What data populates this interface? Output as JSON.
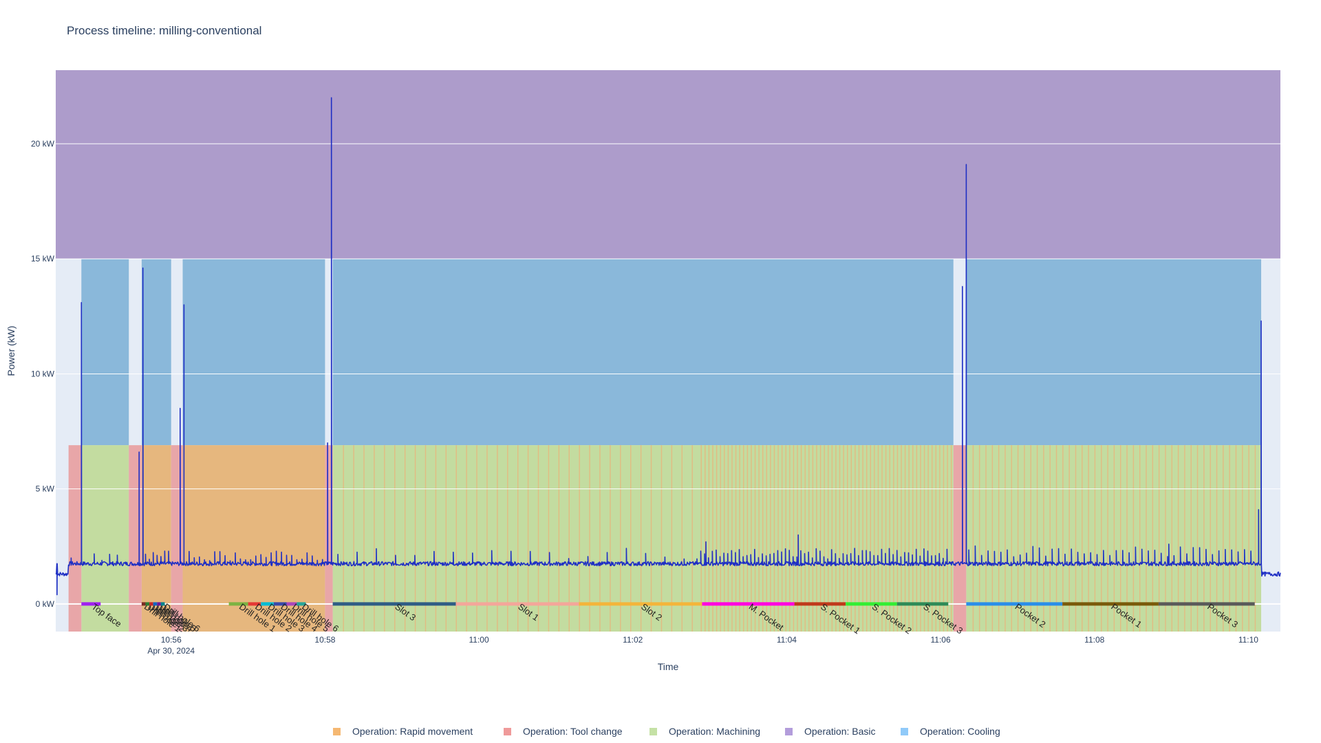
{
  "chart_data": {
    "type": "line",
    "title": "Process timeline: milling-conventional",
    "xlabel": "Time",
    "ylabel": "Power (kW)",
    "x_range": [
      "10:54:30",
      "11:10:25"
    ],
    "y_range": [
      -1.2,
      23.2
    ],
    "x_ticks": [
      {
        "t": "10:56",
        "label": "10:56",
        "sublabel": "Apr 30, 2024"
      },
      {
        "t": "10:58",
        "label": "10:58"
      },
      {
        "t": "11:00",
        "label": "11:00"
      },
      {
        "t": "11:02",
        "label": "11:02"
      },
      {
        "t": "11:04",
        "label": "11:04"
      },
      {
        "t": "11:06",
        "label": "11:06"
      },
      {
        "t": "11:08",
        "label": "11:08"
      },
      {
        "t": "11:10",
        "label": "11:10"
      }
    ],
    "y_ticks": [
      {
        "v": 0,
        "label": "0 kW"
      },
      {
        "v": 5,
        "label": "5 kW"
      },
      {
        "v": 10,
        "label": "10 kW"
      },
      {
        "v": 15,
        "label": "15 kW"
      },
      {
        "v": 20,
        "label": "20 kW"
      }
    ],
    "grid": true,
    "legend_position": "bottom-center",
    "legend": [
      {
        "name": "Operation: Rapid movement",
        "color": "#f5b872"
      },
      {
        "name": "Operation: Tool change",
        "color": "#ef9a9a"
      },
      {
        "name": "Operation: Machining",
        "color": "#c5e1a5"
      },
      {
        "name": "Operation: Basic",
        "color": "#b39ddb"
      },
      {
        "name": "Operation: Cooling",
        "color": "#90caf9"
      }
    ],
    "band_colors": {
      "basic": "#ad9ccb",
      "cooling": "#8ab8da",
      "machining": "#c3dca0",
      "rapid": "#e6b77e",
      "toolchange": "#e8a6a8",
      "plot_bg": "#e5ecf6",
      "line": "#1f2fc4"
    },
    "basic_band": {
      "start": "10:54:30",
      "end": "11:10:25",
      "ymin": 15,
      "ymax": 23.2
    },
    "cooling_bands": [
      {
        "start": "10:54:50",
        "end": "10:55:27"
      },
      {
        "start": "10:55:37",
        "end": "10:56:00"
      },
      {
        "start": "10:56:09",
        "end": "10:58:00"
      },
      {
        "start": "10:58:06",
        "end": "11:06:10"
      },
      {
        "start": "11:06:20",
        "end": "11:10:10"
      }
    ],
    "toolchange_bands": [
      {
        "start": "10:54:40",
        "end": "10:54:50"
      },
      {
        "start": "10:55:27",
        "end": "10:55:37"
      },
      {
        "start": "10:56:00",
        "end": "10:56:09"
      },
      {
        "start": "10:58:00",
        "end": "10:58:06"
      },
      {
        "start": "11:06:10",
        "end": "11:06:20"
      }
    ],
    "rapid_bands": [
      {
        "start": "10:55:37",
        "end": "10:56:00"
      },
      {
        "start": "10:56:09",
        "end": "10:58:00"
      }
    ],
    "machining_bands": [
      {
        "start": "10:54:50",
        "end": "10:55:27"
      },
      {
        "start": "10:58:06",
        "end": "11:06:10"
      },
      {
        "start": "11:06:20",
        "end": "11:10:10"
      }
    ],
    "rapid_stripes": [
      {
        "start": "10:58:06",
        "end": "11:02:50",
        "every_s": 8
      },
      {
        "start": "11:02:50",
        "end": "11:06:10",
        "every_s": 3
      },
      {
        "start": "11:06:20",
        "end": "11:10:10",
        "every_s": 5
      }
    ],
    "band_ymin": -1.2,
    "band_ymax_machining": 6.9,
    "band_ymax_cooling": 15,
    "operations": [
      {
        "label": "Top face",
        "start": "10:54:50",
        "end": "10:55:05",
        "color": "#a020f0"
      },
      {
        "label": "Drill hole 1",
        "start": "10:55:37",
        "end": "10:55:40",
        "color": "#7b2d26"
      },
      {
        "label": "Drill hole 2",
        "start": "10:55:40",
        "end": "10:55:43",
        "color": "#2e7d32"
      },
      {
        "label": "Drill hole 3",
        "start": "10:55:43",
        "end": "10:55:46",
        "color": "#c62828"
      },
      {
        "label": "Drill hole 4",
        "start": "10:55:46",
        "end": "10:55:49",
        "color": "#1565c0"
      },
      {
        "label": "Drill hole 5",
        "start": "10:55:49",
        "end": "10:55:52",
        "color": "#6a1b9a"
      },
      {
        "label": "Drill hole 6",
        "start": "10:55:52",
        "end": "10:55:55",
        "color": "#00838f"
      },
      {
        "label": "Drill hole 1",
        "start": "10:56:45",
        "end": "10:57:00",
        "color": "#7cb342"
      },
      {
        "label": "Drill hole 2",
        "start": "10:57:00",
        "end": "10:57:10",
        "color": "#e53935"
      },
      {
        "label": "Drill hole 3",
        "start": "10:57:10",
        "end": "10:57:20",
        "color": "#00bcd4"
      },
      {
        "label": "Drill hole 4",
        "start": "10:57:20",
        "end": "10:57:30",
        "color": "#3949ab"
      },
      {
        "label": "Drill hole 5",
        "start": "10:57:30",
        "end": "10:57:38",
        "color": "#ab47bc"
      },
      {
        "label": "Drill hole 6",
        "start": "10:57:38",
        "end": "10:57:45",
        "color": "#26a69a"
      },
      {
        "label": "Slot 3",
        "start": "10:58:06",
        "end": "10:59:42",
        "color": "#2f5d85"
      },
      {
        "label": "Slot 1",
        "start": "10:59:42",
        "end": "11:01:18",
        "color": "#f4a69a"
      },
      {
        "label": "Slot 2",
        "start": "11:01:18",
        "end": "11:02:54",
        "color": "#f4b53a"
      },
      {
        "label": "M. Pocket",
        "start": "11:02:54",
        "end": "11:04:06",
        "color": "#ff00e0"
      },
      {
        "label": "S. Pocket 1",
        "start": "11:04:06",
        "end": "11:04:46",
        "color": "#c0391b"
      },
      {
        "label": "S. Pocket 2",
        "start": "11:04:46",
        "end": "11:05:26",
        "color": "#33ee33"
      },
      {
        "label": "S. Pocket 3",
        "start": "11:05:26",
        "end": "11:06:06",
        "color": "#2e8b57"
      },
      {
        "label": "Pocket 2",
        "start": "11:06:20",
        "end": "11:07:35",
        "color": "#2a8ee8"
      },
      {
        "label": "Pocket 1",
        "start": "11:07:35",
        "end": "11:08:50",
        "color": "#7a5a0a"
      },
      {
        "label": "Pocket 3",
        "start": "11:08:50",
        "end": "11:10:05",
        "color": "#5a5a5a"
      }
    ],
    "power_series": {
      "name": "Power",
      "baseline_idle_kW": 1.3,
      "baseline_active_kW": 1.75,
      "peaks": [
        {
          "t": "10:54:31",
          "v": 0.4
        },
        {
          "t": "10:54:42",
          "v": 2.0
        },
        {
          "t": "10:54:50",
          "v": 13.1
        },
        {
          "t": "10:55:35",
          "v": 6.6
        },
        {
          "t": "10:55:38",
          "v": 14.6
        },
        {
          "t": "10:56:07",
          "v": 8.5
        },
        {
          "t": "10:56:10",
          "v": 13.0
        },
        {
          "t": "10:58:02",
          "v": 7.0
        },
        {
          "t": "10:58:05",
          "v": 22.0
        },
        {
          "t": "11:02:57",
          "v": 2.7
        },
        {
          "t": "11:04:09",
          "v": 3.0
        },
        {
          "t": "11:06:17",
          "v": 13.8
        },
        {
          "t": "11:06:20",
          "v": 19.1
        },
        {
          "t": "11:08:58",
          "v": 2.6
        },
        {
          "t": "11:10:08",
          "v": 4.1
        },
        {
          "t": "11:10:10",
          "v": 12.3
        }
      ],
      "spike_trains": [
        {
          "start": "10:55:00",
          "end": "10:55:27",
          "every_s": 6,
          "v": 2.1
        },
        {
          "start": "10:55:40",
          "end": "10:56:00",
          "every_s": 3,
          "v": 2.2
        },
        {
          "start": "10:56:10",
          "end": "10:58:00",
          "every_s": 4,
          "v": 2.2
        },
        {
          "start": "10:58:10",
          "end": "11:02:50",
          "every_s": 15,
          "v": 2.3
        },
        {
          "start": "11:02:50",
          "end": "11:06:08",
          "every_s": 3,
          "v": 2.3
        },
        {
          "start": "11:06:22",
          "end": "11:10:05",
          "every_s": 5,
          "v": 2.4
        }
      ]
    }
  }
}
